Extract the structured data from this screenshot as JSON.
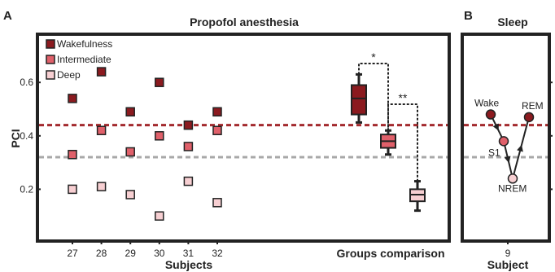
{
  "chart_data": [
    {
      "panel": "A",
      "title": "Propofol anesthesia",
      "type": "scatter",
      "ylabel": "PCI",
      "xlabel": "Subjects",
      "ylim": [
        0.0,
        0.72
      ],
      "yticks": [
        "0.2",
        "0.4",
        "0.6"
      ],
      "categories": [
        "27",
        "28",
        "29",
        "30",
        "31",
        "32"
      ],
      "series": [
        {
          "name": "Wakefulness",
          "color": "#8b1a1f",
          "values": [
            0.54,
            0.64,
            0.49,
            0.6,
            0.44,
            0.49
          ]
        },
        {
          "name": "Intermediate",
          "color": "#e0606a",
          "values": [
            0.33,
            0.42,
            0.34,
            0.4,
            0.36,
            0.42
          ]
        },
        {
          "name": "Deep",
          "color": "#f7cfd2",
          "values": [
            0.2,
            0.21,
            0.18,
            0.1,
            0.23,
            0.15
          ]
        }
      ],
      "thresholds": [
        {
          "value": 0.44,
          "color": "#a32a2e"
        },
        {
          "value": 0.32,
          "color": "#a8a8a8"
        }
      ],
      "group_comparison": {
        "label": "Groups comparison",
        "boxes": [
          {
            "series": "Wakefulness",
            "min": 0.45,
            "q1": 0.48,
            "median": 0.54,
            "q3": 0.59,
            "max": 0.63
          },
          {
            "series": "Intermediate",
            "min": 0.33,
            "q1": 0.355,
            "median": 0.38,
            "q3": 0.405,
            "max": 0.42
          },
          {
            "series": "Deep",
            "min": 0.12,
            "q1": 0.155,
            "median": 0.18,
            "q3": 0.2,
            "max": 0.23
          }
        ],
        "significance": [
          "*",
          "**"
        ]
      }
    },
    {
      "panel": "B",
      "title": "Sleep",
      "type": "line",
      "xlabel": "Subject",
      "categories": [
        "9"
      ],
      "points": [
        {
          "label": "Wake",
          "value": 0.48
        },
        {
          "label": "S1",
          "value": 0.38
        },
        {
          "label": "NREM",
          "value": 0.24
        },
        {
          "label": "REM",
          "value": 0.47
        }
      ],
      "thresholds": [
        {
          "value": 0.44,
          "color": "#a32a2e"
        },
        {
          "value": 0.32,
          "color": "#a8a8a8"
        }
      ]
    }
  ]
}
